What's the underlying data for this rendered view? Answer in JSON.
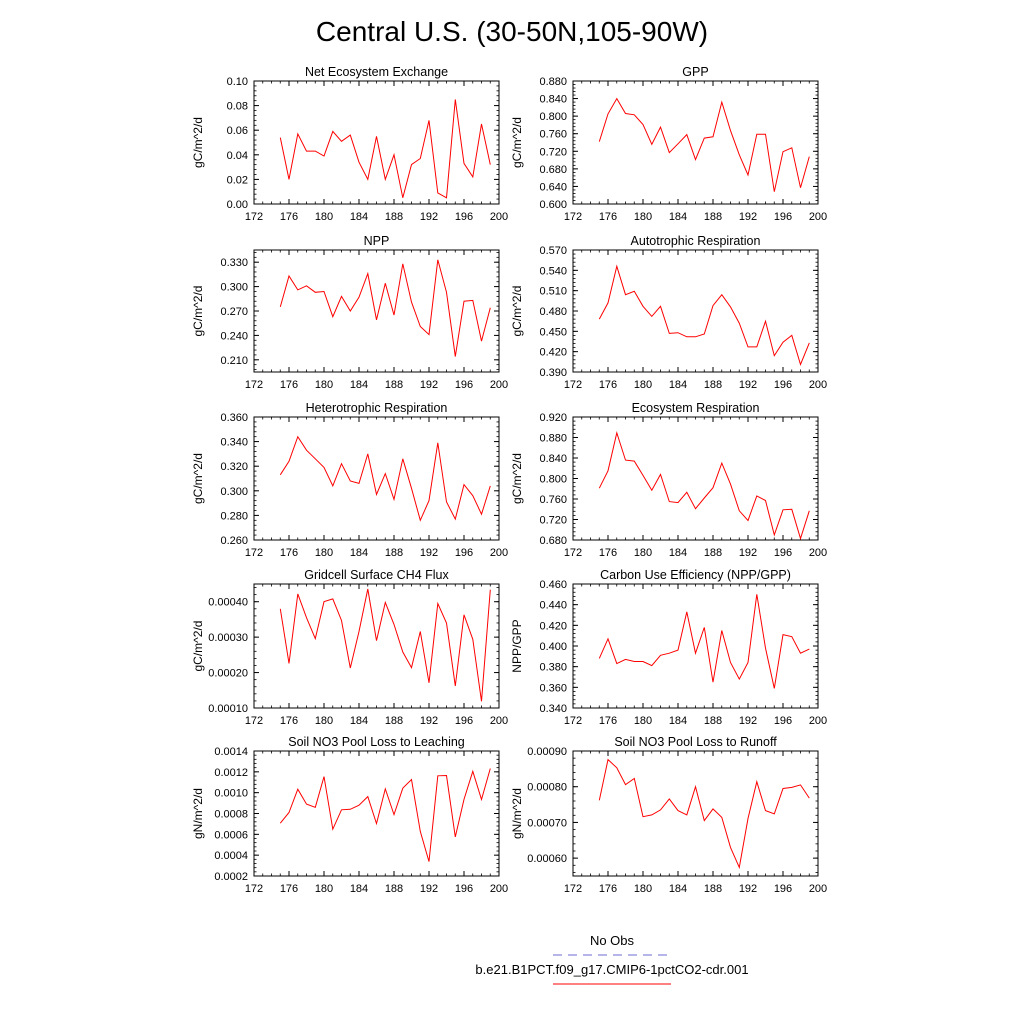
{
  "title": "Central U.S. (30-50N,105-90W)",
  "colors": {
    "series": "#ff0000",
    "obs": "#6b6bd6",
    "axis": "#000000"
  },
  "legend": {
    "entries": [
      {
        "label": "No Obs",
        "style": "dashed",
        "color": "#6b6bd6"
      },
      {
        "label": "b.e21.B1PCT.f09_g17.CMIP6-1pctCO2-cdr.001",
        "style": "solid",
        "color": "#ff0000"
      }
    ]
  },
  "chart_data": [
    {
      "type": "line",
      "title": "Net Ecosystem Exchange",
      "xlabel": "",
      "ylabel": "gC/m^2/d",
      "xlim": [
        172,
        200
      ],
      "ylim": [
        0.0,
        0.1
      ],
      "xticks": [
        "172",
        "176",
        "180",
        "184",
        "188",
        "192",
        "196",
        "200"
      ],
      "yticks": [
        "0.00",
        "0.02",
        "0.04",
        "0.06",
        "0.08",
        "0.10"
      ],
      "x": [
        175,
        176,
        177,
        178,
        179,
        180,
        181,
        182,
        183,
        184,
        185,
        186,
        187,
        188,
        189,
        190,
        191,
        192,
        193,
        194,
        195,
        196,
        197,
        198,
        199
      ],
      "series": [
        {
          "values": [
            0.054,
            0.02,
            0.057,
            0.043,
            0.043,
            0.039,
            0.059,
            0.051,
            0.056,
            0.034,
            0.02,
            0.055,
            0.02,
            0.04,
            0.005,
            0.032,
            0.037,
            0.068,
            0.009,
            0.005,
            0.085,
            0.033,
            0.022,
            0.065,
            0.032
          ]
        }
      ]
    },
    {
      "type": "line",
      "title": "GPP",
      "xlabel": "",
      "ylabel": "gC/m^2/d",
      "xlim": [
        172,
        200
      ],
      "ylim": [
        0.6,
        0.88
      ],
      "xticks": [
        "172",
        "176",
        "180",
        "184",
        "188",
        "192",
        "196",
        "200"
      ],
      "yticks": [
        "0.600",
        "0.640",
        "0.680",
        "0.720",
        "0.760",
        "0.800",
        "0.840",
        "0.880"
      ],
      "x": [
        175,
        176,
        177,
        178,
        179,
        180,
        181,
        182,
        183,
        184,
        185,
        186,
        187,
        188,
        189,
        190,
        191,
        192,
        193,
        194,
        195,
        196,
        197,
        198,
        199
      ],
      "series": [
        {
          "values": [
            0.742,
            0.805,
            0.84,
            0.806,
            0.803,
            0.781,
            0.736,
            0.775,
            0.717,
            0.737,
            0.758,
            0.701,
            0.75,
            0.753,
            0.832,
            0.767,
            0.712,
            0.666,
            0.759,
            0.759,
            0.628,
            0.719,
            0.728,
            0.637,
            0.708
          ]
        }
      ]
    },
    {
      "type": "line",
      "title": "NPP",
      "xlabel": "",
      "ylabel": "gC/m^2/d",
      "xlim": [
        172,
        200
      ],
      "ylim": [
        0.195,
        0.345
      ],
      "xticks": [
        "172",
        "176",
        "180",
        "184",
        "188",
        "192",
        "196",
        "200"
      ],
      "yticks": [
        "0.210",
        "0.240",
        "0.270",
        "0.300",
        "0.330"
      ],
      "x": [
        175,
        176,
        177,
        178,
        179,
        180,
        181,
        182,
        183,
        184,
        185,
        186,
        187,
        188,
        189,
        190,
        191,
        192,
        193,
        194,
        195,
        196,
        197,
        198,
        199
      ],
      "series": [
        {
          "values": [
            0.275,
            0.313,
            0.296,
            0.301,
            0.293,
            0.294,
            0.263,
            0.288,
            0.27,
            0.287,
            0.316,
            0.259,
            0.304,
            0.265,
            0.328,
            0.281,
            0.251,
            0.241,
            0.333,
            0.293,
            0.214,
            0.282,
            0.283,
            0.233,
            0.274
          ]
        }
      ]
    },
    {
      "type": "line",
      "title": "Autotrophic Respiration",
      "xlabel": "",
      "ylabel": "gC/m^2/d",
      "xlim": [
        172,
        200
      ],
      "ylim": [
        0.39,
        0.57
      ],
      "xticks": [
        "172",
        "176",
        "180",
        "184",
        "188",
        "192",
        "196",
        "200"
      ],
      "yticks": [
        "0.390",
        "0.420",
        "0.450",
        "0.480",
        "0.510",
        "0.540",
        "0.570"
      ],
      "x": [
        175,
        176,
        177,
        178,
        179,
        180,
        181,
        182,
        183,
        184,
        185,
        186,
        187,
        188,
        189,
        190,
        191,
        192,
        193,
        194,
        195,
        196,
        197,
        198,
        199
      ],
      "series": [
        {
          "values": [
            0.468,
            0.492,
            0.546,
            0.504,
            0.509,
            0.487,
            0.472,
            0.487,
            0.447,
            0.448,
            0.442,
            0.442,
            0.446,
            0.488,
            0.504,
            0.486,
            0.462,
            0.427,
            0.427,
            0.465,
            0.414,
            0.434,
            0.444,
            0.401,
            0.433
          ]
        }
      ]
    },
    {
      "type": "line",
      "title": "Heterotrophic Respiration",
      "xlabel": "",
      "ylabel": "gC/m^2/d",
      "xlim": [
        172,
        200
      ],
      "ylim": [
        0.26,
        0.36
      ],
      "xticks": [
        "172",
        "176",
        "180",
        "184",
        "188",
        "192",
        "196",
        "200"
      ],
      "yticks": [
        "0.260",
        "0.280",
        "0.300",
        "0.320",
        "0.340",
        "0.360"
      ],
      "x": [
        175,
        176,
        177,
        178,
        179,
        180,
        181,
        182,
        183,
        184,
        185,
        186,
        187,
        188,
        189,
        190,
        191,
        192,
        193,
        194,
        195,
        196,
        197,
        198,
        199
      ],
      "series": [
        {
          "values": [
            0.313,
            0.324,
            0.344,
            0.333,
            0.326,
            0.319,
            0.304,
            0.322,
            0.308,
            0.306,
            0.33,
            0.297,
            0.314,
            0.293,
            0.326,
            0.302,
            0.276,
            0.292,
            0.339,
            0.291,
            0.277,
            0.305,
            0.296,
            0.281,
            0.304
          ]
        }
      ]
    },
    {
      "type": "line",
      "title": "Ecosystem Respiration",
      "xlabel": "",
      "ylabel": "gC/m^2/d",
      "xlim": [
        172,
        200
      ],
      "ylim": [
        0.68,
        0.92
      ],
      "xticks": [
        "172",
        "176",
        "180",
        "184",
        "188",
        "192",
        "196",
        "200"
      ],
      "yticks": [
        "0.680",
        "0.720",
        "0.760",
        "0.800",
        "0.840",
        "0.880",
        "0.920"
      ],
      "x": [
        175,
        176,
        177,
        178,
        179,
        180,
        181,
        182,
        183,
        184,
        185,
        186,
        187,
        188,
        189,
        190,
        191,
        192,
        193,
        194,
        195,
        196,
        197,
        198,
        199
      ],
      "series": [
        {
          "values": [
            0.781,
            0.815,
            0.889,
            0.836,
            0.834,
            0.806,
            0.777,
            0.808,
            0.755,
            0.753,
            0.773,
            0.741,
            0.762,
            0.782,
            0.83,
            0.789,
            0.737,
            0.718,
            0.766,
            0.757,
            0.69,
            0.739,
            0.74,
            0.683,
            0.737
          ]
        }
      ]
    },
    {
      "type": "line",
      "title": "Gridcell Surface CH4 Flux",
      "xlabel": "",
      "ylabel": "gC/m^2/d",
      "xlim": [
        172,
        200
      ],
      "ylim": [
        0.0001,
        0.00045
      ],
      "xticks": [
        "172",
        "176",
        "180",
        "184",
        "188",
        "192",
        "196",
        "200"
      ],
      "yticks": [
        "0.00010",
        "0.00020",
        "0.00030",
        "0.00040"
      ],
      "x": [
        175,
        176,
        177,
        178,
        179,
        180,
        181,
        182,
        183,
        184,
        185,
        186,
        187,
        188,
        189,
        190,
        191,
        192,
        193,
        194,
        195,
        196,
        197,
        198,
        199
      ],
      "series": [
        {
          "values": [
            0.00038,
            0.000226,
            0.000422,
            0.000355,
            0.000296,
            0.0004,
            0.000408,
            0.000347,
            0.000213,
            0.000316,
            0.000436,
            0.00029,
            0.000398,
            0.000336,
            0.000258,
            0.000214,
            0.000316,
            0.000171,
            0.000395,
            0.00034,
            0.000162,
            0.000363,
            0.000294,
            0.000119,
            0.000434
          ]
        }
      ]
    },
    {
      "type": "line",
      "title": "Carbon Use Efficiency (NPP/GPP)",
      "xlabel": "",
      "ylabel": "NPP/GPP",
      "xlim": [
        172,
        200
      ],
      "ylim": [
        0.34,
        0.46
      ],
      "xticks": [
        "172",
        "176",
        "180",
        "184",
        "188",
        "192",
        "196",
        "200"
      ],
      "yticks": [
        "0.340",
        "0.360",
        "0.380",
        "0.400",
        "0.420",
        "0.440",
        "0.460"
      ],
      "x": [
        175,
        176,
        177,
        178,
        179,
        180,
        181,
        182,
        183,
        184,
        185,
        186,
        187,
        188,
        189,
        190,
        191,
        192,
        193,
        194,
        195,
        196,
        197,
        198,
        199
      ],
      "series": [
        {
          "values": [
            0.388,
            0.407,
            0.383,
            0.387,
            0.385,
            0.385,
            0.381,
            0.391,
            0.393,
            0.396,
            0.433,
            0.393,
            0.418,
            0.365,
            0.415,
            0.384,
            0.368,
            0.384,
            0.45,
            0.398,
            0.359,
            0.411,
            0.409,
            0.393,
            0.397
          ]
        }
      ]
    },
    {
      "type": "line",
      "title": "Soil NO3 Pool Loss to Leaching",
      "xlabel": "",
      "ylabel": "gN/m^2/d",
      "xlim": [
        172,
        200
      ],
      "ylim": [
        0.0002,
        0.0014
      ],
      "xticks": [
        "172",
        "176",
        "180",
        "184",
        "188",
        "192",
        "196",
        "200"
      ],
      "yticks": [
        "0.0002",
        "0.0004",
        "0.0006",
        "0.0008",
        "0.0010",
        "0.0012",
        "0.0014"
      ],
      "x": [
        175,
        176,
        177,
        178,
        179,
        180,
        181,
        182,
        183,
        184,
        185,
        186,
        187,
        188,
        189,
        190,
        191,
        192,
        193,
        194,
        195,
        196,
        197,
        198,
        199
      ],
      "series": [
        {
          "values": [
            0.000707,
            0.00081,
            0.001033,
            0.00089,
            0.00086,
            0.001154,
            0.000649,
            0.000836,
            0.00084,
            0.00088,
            0.000962,
            0.000703,
            0.001036,
            0.000789,
            0.001043,
            0.001126,
            0.000628,
            0.000338,
            0.001162,
            0.001165,
            0.000575,
            0.000935,
            0.001205,
            0.000934,
            0.001232
          ]
        }
      ]
    },
    {
      "type": "line",
      "title": "Soil NO3 Pool Loss to Runoff",
      "xlabel": "",
      "ylabel": "gN/m^2/d",
      "xlim": [
        172,
        200
      ],
      "ylim": [
        0.00055,
        0.0009
      ],
      "xticks": [
        "172",
        "176",
        "180",
        "184",
        "188",
        "192",
        "196",
        "200"
      ],
      "yticks": [
        "0.00060",
        "0.00070",
        "0.00080",
        "0.00090"
      ],
      "x": [
        175,
        176,
        177,
        178,
        179,
        180,
        181,
        182,
        183,
        184,
        185,
        186,
        187,
        188,
        189,
        190,
        191,
        192,
        193,
        194,
        195,
        196,
        197,
        198,
        199
      ],
      "series": [
        {
          "values": [
            0.000762,
            0.000876,
            0.000853,
            0.000806,
            0.000823,
            0.000716,
            0.000721,
            0.000735,
            0.000766,
            0.000733,
            0.000721,
            0.0008,
            0.000705,
            0.000738,
            0.000714,
            0.00063,
            0.000574,
            0.000711,
            0.000814,
            0.000733,
            0.000724,
            0.000795,
            0.000798,
            0.000805,
            0.000768
          ]
        }
      ]
    }
  ]
}
